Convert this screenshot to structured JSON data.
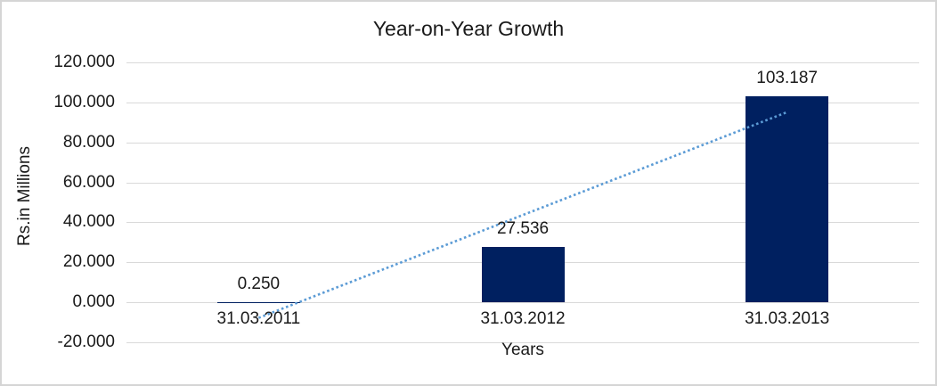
{
  "window": {
    "background": "#FFFFFF",
    "border_color": "#D5D5D5"
  },
  "chart_data": {
    "type": "bar",
    "title": "Year-on-Year Growth",
    "xlabel": "Years",
    "ylabel": "Rs.in Millions",
    "categories": [
      "31.03.2011",
      "31.03.2012",
      "31.03.2013"
    ],
    "values": [
      0.25,
      27.536,
      103.187
    ],
    "data_labels": [
      "0.250",
      "27.536",
      "103.187"
    ],
    "ylim": [
      -20,
      120
    ],
    "ytick_step": 20,
    "ytick_labels": [
      "120.000",
      "100.000",
      "80.000",
      "60.000",
      "40.000",
      "20.000",
      "0.000",
      "-20.000"
    ],
    "grid": true,
    "legend": "none",
    "bar_color": "#002060",
    "gridline_color": "#D9D9D9",
    "text_color": "#1A1A1A",
    "trendline": {
      "type": "linear",
      "style": "dotted",
      "color": "#5B9BD5",
      "start_value": -7.8,
      "end_value": 95.1
    }
  }
}
